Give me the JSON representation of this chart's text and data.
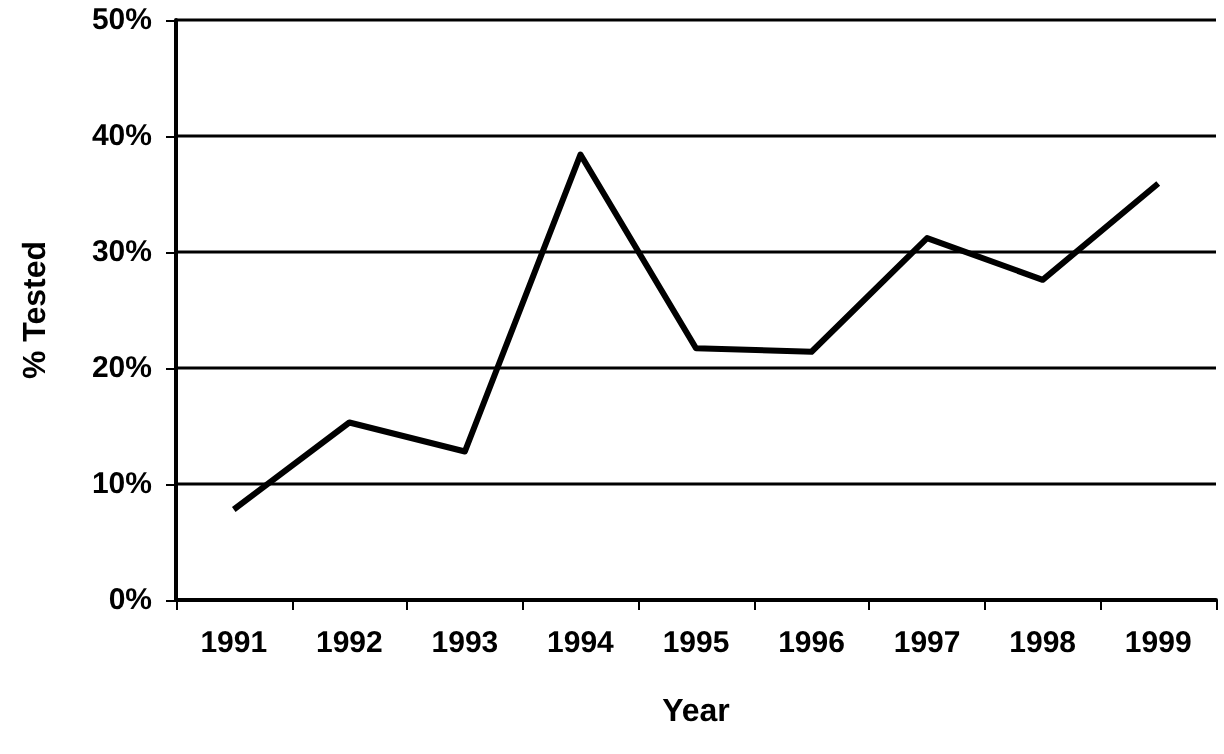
{
  "chart_data": {
    "type": "line",
    "xlabel": "Year",
    "ylabel": "% Tested",
    "categories": [
      "1991",
      "1992",
      "1993",
      "1994",
      "1995",
      "1996",
      "1997",
      "1998",
      "1999"
    ],
    "series": [
      {
        "color": "#000000",
        "values": [
          7.8,
          15.3,
          12.8,
          38.4,
          21.7,
          21.4,
          31.2,
          27.6,
          35.9
        ]
      }
    ],
    "ylim": [
      0,
      50
    ],
    "yticks": [
      {
        "value": 0,
        "label": "0%"
      },
      {
        "value": 10,
        "label": "10%"
      },
      {
        "value": 20,
        "label": "20%"
      },
      {
        "value": 30,
        "label": "30%"
      },
      {
        "value": 40,
        "label": "40%"
      },
      {
        "value": 50,
        "label": "50%"
      }
    ],
    "grid": "y",
    "marker": "none",
    "line_style": "solid"
  }
}
